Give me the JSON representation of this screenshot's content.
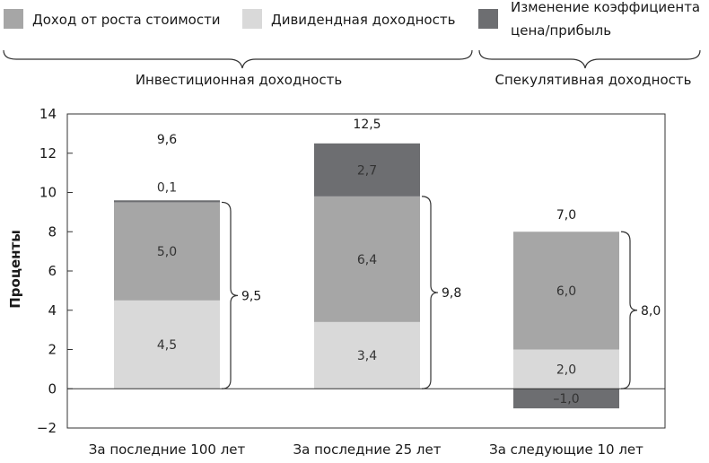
{
  "colors": {
    "earnings_growth": "#a6a6a6",
    "dividend_yield": "#d9d9d9",
    "pe_change": "#6d6e71",
    "axis": "#333333"
  },
  "legend": [
    {
      "label": "Доход от роста стоимости",
      "color": "#a6a6a6"
    },
    {
      "label": "Дивидендная доходность",
      "color": "#d9d9d9"
    },
    {
      "label": "Изменение коэффициента",
      "label2": "цена/прибыль",
      "color": "#6d6e71"
    }
  ],
  "groups": {
    "investment": "Инвестиционная доходность",
    "speculative": "Спекулятивная доходность"
  },
  "chart_data": {
    "type": "bar",
    "stacked": true,
    "categories": [
      "За последние 100 лет",
      "За последние 25 лет",
      "За следующие 10 лет"
    ],
    "series": [
      {
        "name": "Дивидендная доходность",
        "values": [
          4.5,
          3.4,
          2.0
        ],
        "labels": [
          "4,5",
          "3,4",
          "2,0"
        ]
      },
      {
        "name": "Доход от роста стоимости",
        "values": [
          5.0,
          6.4,
          6.0
        ],
        "labels": [
          "5,0",
          "6,4",
          "6,0"
        ]
      },
      {
        "name": "Изменение коэффициента цена/прибыль",
        "values": [
          0.1,
          2.7,
          -1.0
        ],
        "labels": [
          "0,1",
          "2,7",
          "–1,0"
        ]
      }
    ],
    "totals": [
      "9,6",
      "12,5",
      "7,0"
    ],
    "investment_totals": [
      "9,5",
      "9,8",
      "8,0"
    ],
    "ylabel": "Проценты",
    "ylim": [
      -2,
      14
    ],
    "yticks": [
      -2,
      0,
      2,
      4,
      6,
      8,
      10,
      12,
      14
    ],
    "ytick_labels": [
      "−2",
      "0",
      "2",
      "4",
      "6",
      "8",
      "10",
      "12",
      "14"
    ],
    "grid": false
  }
}
